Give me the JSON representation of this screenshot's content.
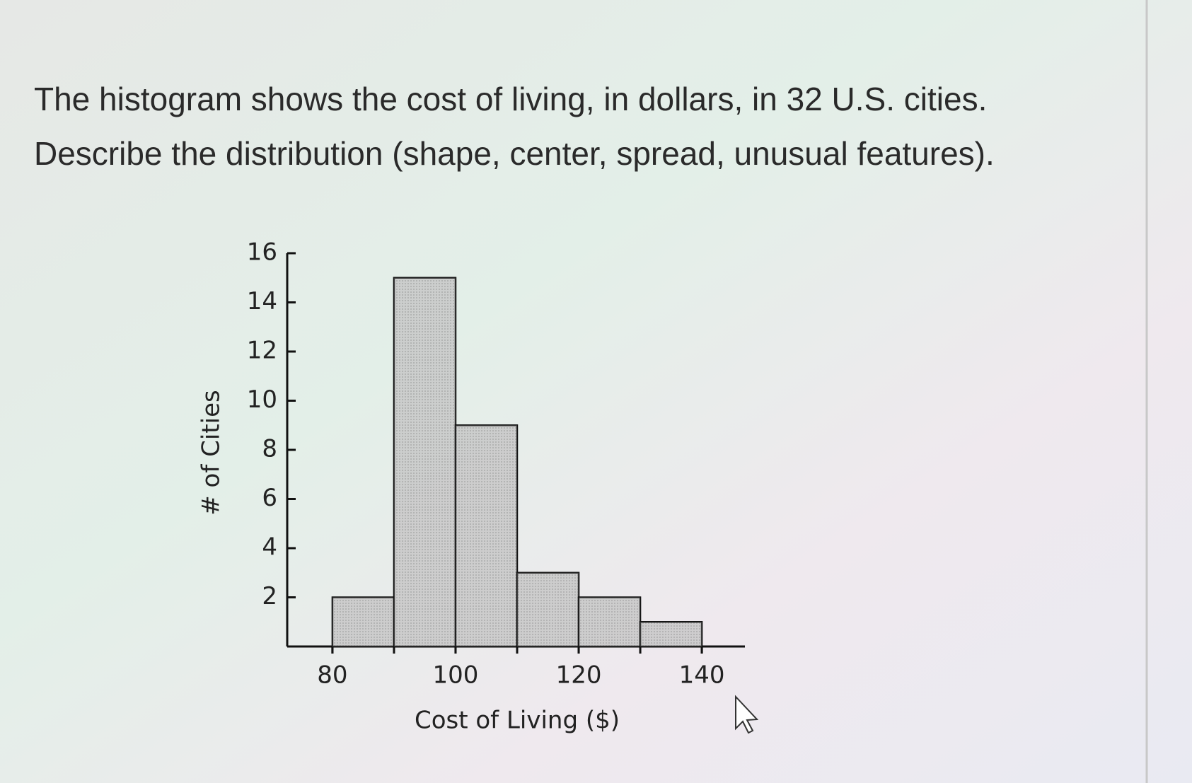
{
  "prompt": {
    "lines": [
      "The histogram shows the cost of living, in dollars, in 32 U.S. cities.",
      "Describe the distribution (shape, center, spread, unusual features)."
    ]
  },
  "chart_data": {
    "type": "histogram",
    "x_label": "Cost of Living ($)",
    "y_label": "# of Cities",
    "bins": [
      80,
      90,
      100,
      110,
      120,
      130,
      140
    ],
    "values": [
      2,
      15,
      9,
      3,
      2,
      1
    ],
    "color": "#bdbdbd",
    "xlim": [
      73,
      147
    ],
    "xticks": [
      80,
      100,
      120,
      140
    ],
    "ylim": [
      0,
      16
    ],
    "yticks": [
      2,
      4,
      6,
      8,
      10,
      12,
      14,
      16
    ]
  }
}
